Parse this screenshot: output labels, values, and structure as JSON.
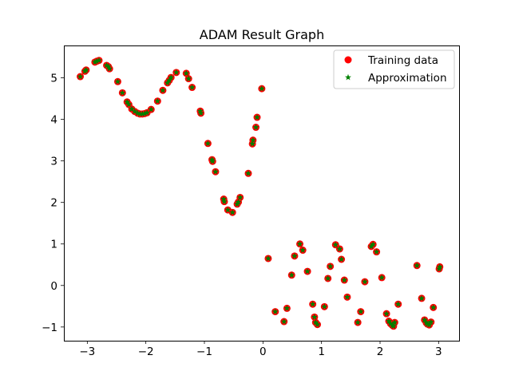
{
  "chart_data": {
    "type": "scatter",
    "title": "ADAM Result Graph",
    "xlabel": "",
    "ylabel": "",
    "xlim": [
      -3.4,
      3.35
    ],
    "ylim": [
      -1.33,
      5.78
    ],
    "xticks": [
      -3,
      -2,
      -1,
      0,
      1,
      2,
      3
    ],
    "yticks": [
      -1,
      0,
      1,
      2,
      3,
      4,
      5
    ],
    "grid": false,
    "legend_position": "top-right",
    "legend": [
      "Training data",
      "Approximation"
    ],
    "series": [
      {
        "name": "Training data",
        "marker": "circle",
        "color": "#ff0000",
        "points": [
          [
            -3.12,
            5.03
          ],
          [
            -3.04,
            5.16
          ],
          [
            -3.02,
            5.19
          ],
          [
            -2.87,
            5.38
          ],
          [
            -2.84,
            5.4
          ],
          [
            -2.8,
            5.42
          ],
          [
            -2.67,
            5.3
          ],
          [
            -2.64,
            5.27
          ],
          [
            -2.62,
            5.22
          ],
          [
            -2.48,
            4.91
          ],
          [
            -2.4,
            4.64
          ],
          [
            -2.32,
            4.42
          ],
          [
            -2.29,
            4.36
          ],
          [
            -2.24,
            4.25
          ],
          [
            -2.19,
            4.19
          ],
          [
            -2.14,
            4.15
          ],
          [
            -2.1,
            4.13
          ],
          [
            -2.06,
            4.13
          ],
          [
            -2.02,
            4.14
          ],
          [
            -1.98,
            4.16
          ],
          [
            -1.91,
            4.24
          ],
          [
            -1.8,
            4.44
          ],
          [
            -1.71,
            4.7
          ],
          [
            -1.63,
            4.88
          ],
          [
            -1.6,
            4.94
          ],
          [
            -1.57,
            5.01
          ],
          [
            -1.48,
            5.13
          ],
          [
            -1.31,
            5.11
          ],
          [
            -1.27,
            4.98
          ],
          [
            -1.21,
            4.77
          ],
          [
            -1.07,
            4.2
          ],
          [
            -1.06,
            4.15
          ],
          [
            -0.94,
            3.42
          ],
          [
            -0.87,
            3.03
          ],
          [
            -0.86,
            2.99
          ],
          [
            -0.81,
            2.74
          ],
          [
            -0.67,
            2.08
          ],
          [
            -0.66,
            2.02
          ],
          [
            -0.6,
            1.82
          ],
          [
            -0.52,
            1.76
          ],
          [
            -0.44,
            1.96
          ],
          [
            -0.42,
            2.01
          ],
          [
            -0.39,
            2.12
          ],
          [
            -0.25,
            2.7
          ],
          [
            -0.18,
            3.41
          ],
          [
            -0.17,
            3.5
          ],
          [
            -0.12,
            3.81
          ],
          [
            -0.1,
            4.05
          ],
          [
            -0.02,
            4.74
          ],
          [
            0.09,
            0.65
          ],
          [
            0.21,
            -0.63
          ],
          [
            0.36,
            -0.87
          ],
          [
            0.41,
            -0.55
          ],
          [
            0.49,
            0.25
          ],
          [
            0.54,
            0.71
          ],
          [
            0.63,
            1.0
          ],
          [
            0.68,
            0.85
          ],
          [
            0.76,
            0.34
          ],
          [
            0.85,
            -0.45
          ],
          [
            0.88,
            -0.76
          ],
          [
            0.9,
            -0.89
          ],
          [
            0.93,
            -0.94
          ],
          [
            1.05,
            -0.51
          ],
          [
            1.11,
            0.17
          ],
          [
            1.15,
            0.46
          ],
          [
            1.24,
            0.98
          ],
          [
            1.31,
            0.88
          ],
          [
            1.34,
            0.63
          ],
          [
            1.39,
            0.13
          ],
          [
            1.44,
            -0.28
          ],
          [
            1.62,
            -0.89
          ],
          [
            1.67,
            -0.63
          ],
          [
            1.74,
            0.09
          ],
          [
            1.85,
            0.94
          ],
          [
            1.88,
            0.99
          ],
          [
            1.94,
            0.81
          ],
          [
            2.03,
            0.19
          ],
          [
            2.11,
            -0.68
          ],
          [
            2.15,
            -0.86
          ],
          [
            2.18,
            -0.92
          ],
          [
            2.21,
            -0.96
          ],
          [
            2.23,
            -0.98
          ],
          [
            2.25,
            -0.89
          ],
          [
            2.31,
            -0.45
          ],
          [
            2.63,
            0.48
          ],
          [
            2.71,
            -0.31
          ],
          [
            2.76,
            -0.83
          ],
          [
            2.79,
            -0.9
          ],
          [
            2.81,
            -0.93
          ],
          [
            2.84,
            -0.95
          ],
          [
            2.87,
            -0.88
          ],
          [
            2.91,
            -0.53
          ],
          [
            3.01,
            0.4
          ],
          [
            3.02,
            0.45
          ]
        ]
      },
      {
        "name": "Approximation",
        "marker": "star",
        "color": "#008000",
        "points": "same as Training data"
      }
    ]
  }
}
